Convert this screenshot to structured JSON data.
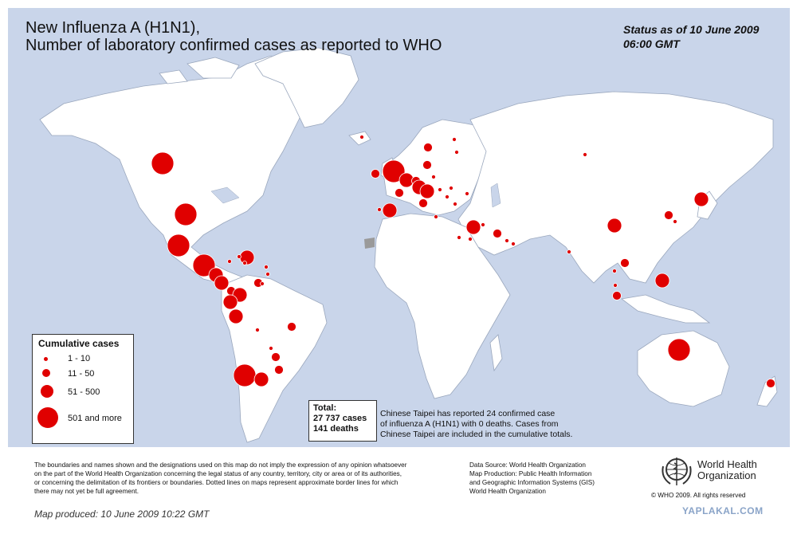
{
  "title": {
    "line1": "New Influenza A (H1N1),",
    "line2": "Number of  laboratory confirmed cases as reported to WHO"
  },
  "status": {
    "line1": "Status as of 10 June 2009",
    "line2": "06:00 GMT"
  },
  "colors": {
    "ocean": "#c9d5ea",
    "land": "#ffffff",
    "case_marker": "#e00000",
    "disputed_area": "#9a9a9a"
  },
  "legend": {
    "title": "Cumulative cases",
    "items": [
      {
        "label": "1 - 10",
        "size_class": "smallest"
      },
      {
        "label": "11 - 50",
        "size_class": "small"
      },
      {
        "label": "51 - 500",
        "size_class": "medium"
      },
      {
        "label": "501 and more",
        "size_class": "large"
      }
    ]
  },
  "total": {
    "heading": "Total:",
    "cases": "27 737 cases",
    "deaths": "141 deaths"
  },
  "note": {
    "line1": "Chinese Taipei has reported 24 confirmed case",
    "line2": "of influenza A (H1N1) with 0 deaths. Cases from",
    "line3": "Chinese Taipei are included in the cumulative totals."
  },
  "disclaimer": {
    "line1": "The boundaries and names shown and the designations used on this map do not imply the expression of any opinion whatsoever",
    "line2": "on the part of the World Health Organization concerning the legal status of any country, territory, city or area or of its authorities,",
    "line3": "or concerning the delimitation of its frontiers or boundaries.  Dotted lines on maps represent approximate border lines for which",
    "line4": "there may not yet be full agreement."
  },
  "sources": {
    "line1": "Data Source: World Health Organization",
    "line2": "Map Production: Public Health Information",
    "line3": "and Geographic Information Systems (GIS)",
    "line4": "World Health Organization"
  },
  "produced": "Map produced: 10 June 2009 10:22 GMT",
  "who": {
    "name_line1": "World Health",
    "name_line2": "Organization",
    "copyright": "© WHO 2009. All rights reserved",
    "logo_icon": "who-emblem-icon"
  },
  "watermark": "YAPLAKAL.COM"
}
